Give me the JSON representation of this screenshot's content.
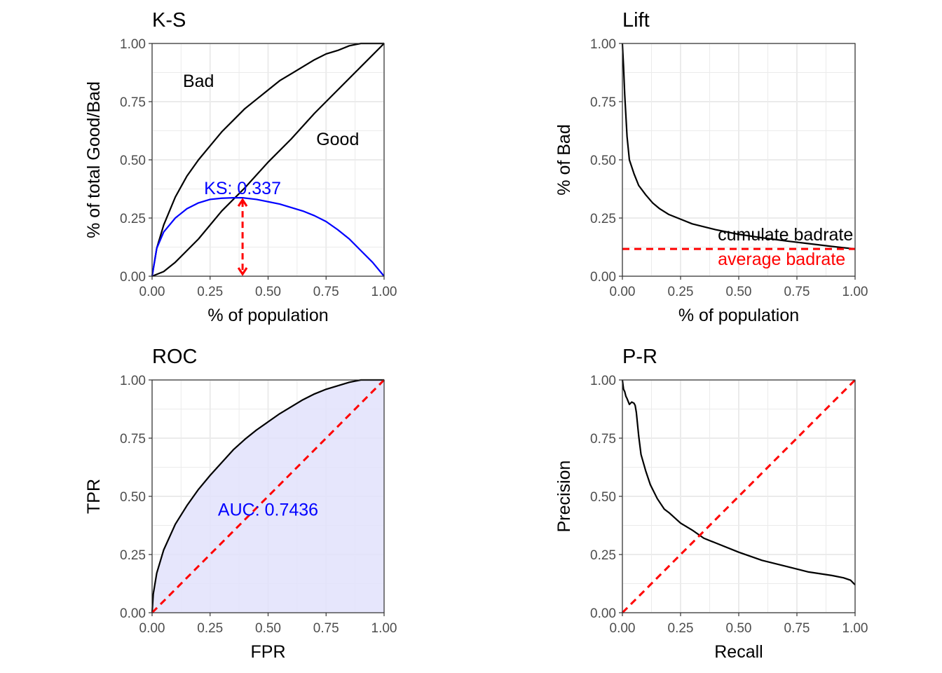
{
  "chart_data": [
    {
      "id": "ks",
      "type": "line",
      "title": "K-S",
      "xlabel": "% of population",
      "ylabel": "% of total Good/Bad",
      "xlim": [
        0,
        1
      ],
      "ylim": [
        0,
        1
      ],
      "xticks": [
        "0.00",
        "0.25",
        "0.50",
        "0.75",
        "1.00"
      ],
      "yticks": [
        "0.00",
        "0.25",
        "0.50",
        "0.75",
        "1.00"
      ],
      "grid": true,
      "series": [
        {
          "name": "Bad",
          "color": "#000000",
          "x": [
            0,
            0.02,
            0.05,
            0.1,
            0.15,
            0.2,
            0.25,
            0.3,
            0.35,
            0.4,
            0.45,
            0.5,
            0.55,
            0.6,
            0.65,
            0.7,
            0.75,
            0.8,
            0.85,
            0.9,
            0.95,
            1.0
          ],
          "y": [
            0,
            0.12,
            0.22,
            0.34,
            0.43,
            0.5,
            0.56,
            0.62,
            0.67,
            0.72,
            0.76,
            0.8,
            0.84,
            0.87,
            0.9,
            0.93,
            0.955,
            0.97,
            0.99,
            1.0,
            1.0,
            1.0
          ]
        },
        {
          "name": "Good",
          "color": "#000000",
          "x": [
            0,
            0.05,
            0.1,
            0.2,
            0.3,
            0.4,
            0.5,
            0.6,
            0.7,
            0.8,
            0.9,
            1.0
          ],
          "y": [
            0,
            0.02,
            0.06,
            0.16,
            0.28,
            0.38,
            0.49,
            0.59,
            0.7,
            0.8,
            0.9,
            1.0
          ]
        },
        {
          "name": "KS",
          "color": "#0000ff",
          "x": [
            0,
            0.02,
            0.05,
            0.1,
            0.15,
            0.2,
            0.25,
            0.3,
            0.35,
            0.39,
            0.45,
            0.5,
            0.55,
            0.6,
            0.65,
            0.7,
            0.75,
            0.8,
            0.85,
            0.9,
            0.95,
            1.0
          ],
          "y": [
            0,
            0.12,
            0.19,
            0.25,
            0.29,
            0.315,
            0.33,
            0.335,
            0.337,
            0.337,
            0.33,
            0.32,
            0.31,
            0.295,
            0.28,
            0.26,
            0.235,
            0.2,
            0.16,
            0.11,
            0.06,
            0
          ]
        }
      ],
      "annotations": [
        {
          "text": "Bad",
          "x": 0.2,
          "y": 0.84,
          "color": "#000000"
        },
        {
          "text": "Good",
          "x": 0.8,
          "y": 0.59,
          "color": "#000000"
        },
        {
          "text": "KS: 0.337",
          "x": 0.39,
          "y": 0.38,
          "color": "#0000ff"
        }
      ],
      "ks_marker": {
        "x": 0.39,
        "y0": 0,
        "y1": 0.337,
        "color": "#ff0000"
      }
    },
    {
      "id": "lift",
      "type": "line",
      "title": "Lift",
      "xlabel": "% of population",
      "ylabel": "% of Bad",
      "xlim": [
        0,
        1
      ],
      "ylim": [
        0,
        1
      ],
      "xticks": [
        "0.00",
        "0.25",
        "0.50",
        "0.75",
        "1.00"
      ],
      "yticks": [
        "0.00",
        "0.25",
        "0.50",
        "0.75",
        "1.00"
      ],
      "grid": true,
      "series": [
        {
          "name": "cumulate badrate",
          "color": "#000000",
          "x": [
            0,
            0.005,
            0.01,
            0.02,
            0.03,
            0.05,
            0.07,
            0.1,
            0.13,
            0.16,
            0.2,
            0.25,
            0.3,
            0.4,
            0.5,
            0.6,
            0.7,
            0.8,
            0.9,
            1.0
          ],
          "y": [
            1.0,
            0.9,
            0.78,
            0.6,
            0.5,
            0.44,
            0.39,
            0.35,
            0.315,
            0.29,
            0.265,
            0.245,
            0.225,
            0.2,
            0.18,
            0.165,
            0.152,
            0.14,
            0.128,
            0.117
          ]
        },
        {
          "name": "average badrate",
          "color": "#ff0000",
          "dashed": true,
          "x": [
            0,
            1
          ],
          "y": [
            0.117,
            0.117
          ]
        }
      ],
      "annotations": [
        {
          "text": "cumulate badrate",
          "x": 1.0,
          "y": 0.18,
          "color": "#000000",
          "anchor": "end"
        },
        {
          "text": "average badrate",
          "x": 1.0,
          "y": 0.075,
          "color": "#ff0000",
          "anchor": "end"
        }
      ]
    },
    {
      "id": "roc",
      "type": "area",
      "title": "ROC",
      "xlabel": "FPR",
      "ylabel": "TPR",
      "xlim": [
        0,
        1
      ],
      "ylim": [
        0,
        1
      ],
      "xticks": [
        "0.00",
        "0.25",
        "0.50",
        "0.75",
        "1.00"
      ],
      "yticks": [
        "0.00",
        "0.25",
        "0.50",
        "0.75",
        "1.00"
      ],
      "grid": true,
      "fill_color": "#e2e2fb",
      "series": [
        {
          "name": "ROC",
          "color": "#000000",
          "x": [
            0,
            0.005,
            0.02,
            0.05,
            0.1,
            0.15,
            0.2,
            0.25,
            0.3,
            0.35,
            0.4,
            0.45,
            0.5,
            0.55,
            0.6,
            0.65,
            0.7,
            0.75,
            0.8,
            0.85,
            0.9,
            0.95,
            1.0
          ],
          "y": [
            0,
            0.08,
            0.17,
            0.27,
            0.38,
            0.46,
            0.53,
            0.59,
            0.645,
            0.7,
            0.745,
            0.785,
            0.82,
            0.855,
            0.885,
            0.915,
            0.94,
            0.96,
            0.975,
            0.99,
            1.0,
            1.0,
            1.0
          ]
        },
        {
          "name": "diagonal",
          "color": "#ff0000",
          "dashed": true,
          "x": [
            0,
            1
          ],
          "y": [
            0,
            1
          ]
        }
      ],
      "annotations": [
        {
          "text": "AUC: 0.7436",
          "x": 0.5,
          "y": 0.445,
          "color": "#0000ff"
        }
      ]
    },
    {
      "id": "pr",
      "type": "line",
      "title": "P-R",
      "xlabel": "Recall",
      "ylabel": "Precision",
      "xlim": [
        0,
        1
      ],
      "ylim": [
        0,
        1
      ],
      "xticks": [
        "0.00",
        "0.25",
        "0.50",
        "0.75",
        "1.00"
      ],
      "yticks": [
        "0.00",
        "0.25",
        "0.50",
        "0.75",
        "1.00"
      ],
      "grid": true,
      "series": [
        {
          "name": "P-R",
          "color": "#000000",
          "x": [
            0,
            0.005,
            0.01,
            0.015,
            0.02,
            0.03,
            0.04,
            0.05,
            0.055,
            0.06,
            0.07,
            0.08,
            0.1,
            0.12,
            0.15,
            0.18,
            0.2,
            0.25,
            0.3,
            0.35,
            0.4,
            0.5,
            0.6,
            0.7,
            0.8,
            0.9,
            0.95,
            0.98,
            1.0
          ],
          "y": [
            1.0,
            0.96,
            0.95,
            0.93,
            0.92,
            0.895,
            0.905,
            0.9,
            0.89,
            0.86,
            0.76,
            0.68,
            0.61,
            0.55,
            0.49,
            0.445,
            0.43,
            0.385,
            0.355,
            0.32,
            0.3,
            0.26,
            0.225,
            0.2,
            0.175,
            0.16,
            0.15,
            0.14,
            0.12
          ]
        },
        {
          "name": "diagonal",
          "color": "#ff0000",
          "dashed": true,
          "x": [
            0,
            1
          ],
          "y": [
            0,
            1
          ]
        }
      ],
      "annotations": []
    }
  ]
}
